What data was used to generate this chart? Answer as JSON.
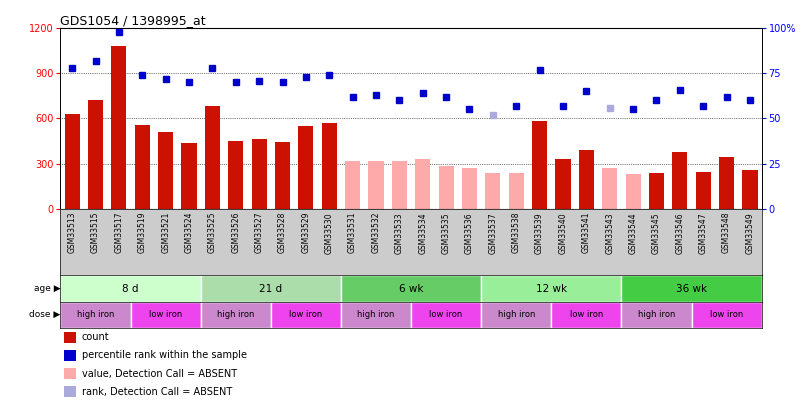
{
  "title": "GDS1054 / 1398995_at",
  "samples": [
    "GSM33513",
    "GSM33515",
    "GSM33517",
    "GSM33519",
    "GSM33521",
    "GSM33524",
    "GSM33525",
    "GSM33526",
    "GSM33527",
    "GSM33528",
    "GSM33529",
    "GSM33530",
    "GSM33531",
    "GSM33532",
    "GSM33533",
    "GSM33534",
    "GSM33535",
    "GSM33536",
    "GSM33537",
    "GSM33538",
    "GSM33539",
    "GSM33540",
    "GSM33541",
    "GSM33543",
    "GSM33544",
    "GSM33545",
    "GSM33546",
    "GSM33547",
    "GSM33548",
    "GSM33549"
  ],
  "bar_values": [
    630,
    720,
    1080,
    555,
    510,
    435,
    680,
    450,
    460,
    445,
    550,
    570,
    320,
    320,
    320,
    330,
    285,
    270,
    240,
    240,
    580,
    330,
    390,
    270,
    230,
    235,
    380,
    245,
    345,
    255
  ],
  "bar_absent": [
    false,
    false,
    false,
    false,
    false,
    false,
    false,
    false,
    false,
    false,
    false,
    false,
    true,
    true,
    true,
    true,
    true,
    true,
    true,
    true,
    false,
    false,
    false,
    true,
    true,
    false,
    false,
    false,
    false,
    false
  ],
  "percentile_values": [
    78,
    82,
    98,
    74,
    72,
    70,
    78,
    70,
    71,
    70,
    73,
    74,
    62,
    63,
    60,
    64,
    62,
    55,
    52,
    57,
    77,
    57,
    65,
    56,
    55,
    60,
    66,
    57,
    62,
    60
  ],
  "percentile_absent": [
    false,
    false,
    false,
    false,
    false,
    false,
    false,
    false,
    false,
    false,
    false,
    false,
    false,
    false,
    false,
    false,
    false,
    false,
    true,
    false,
    false,
    false,
    false,
    true,
    false,
    false,
    false,
    false,
    false,
    false
  ],
  "ylim_left": [
    0,
    1200
  ],
  "ylim_right": [
    0,
    100
  ],
  "yticks_left": [
    0,
    300,
    600,
    900,
    1200
  ],
  "yticks_right": [
    0,
    25,
    50,
    75,
    100
  ],
  "bar_color_present": "#cc1100",
  "bar_color_absent": "#ffaaaa",
  "dot_color_present": "#0000cc",
  "dot_color_absent": "#aaaadd",
  "age_groups": [
    {
      "label": "8 d",
      "start": 0,
      "end": 6,
      "color": "#ccffcc"
    },
    {
      "label": "21 d",
      "start": 6,
      "end": 12,
      "color": "#aaddaa"
    },
    {
      "label": "6 wk",
      "start": 12,
      "end": 18,
      "color": "#66cc66"
    },
    {
      "label": "12 wk",
      "start": 18,
      "end": 24,
      "color": "#99ee99"
    },
    {
      "label": "36 wk",
      "start": 24,
      "end": 30,
      "color": "#44cc44"
    }
  ],
  "dose_groups": [
    {
      "label": "high iron",
      "start": 0,
      "end": 3,
      "color": "#cc88cc"
    },
    {
      "label": "low iron",
      "start": 3,
      "end": 6,
      "color": "#ee44ee"
    },
    {
      "label": "high iron",
      "start": 6,
      "end": 9,
      "color": "#cc88cc"
    },
    {
      "label": "low iron",
      "start": 9,
      "end": 12,
      "color": "#ee44ee"
    },
    {
      "label": "high iron",
      "start": 12,
      "end": 15,
      "color": "#cc88cc"
    },
    {
      "label": "low iron",
      "start": 15,
      "end": 18,
      "color": "#ee44ee"
    },
    {
      "label": "high iron",
      "start": 18,
      "end": 21,
      "color": "#cc88cc"
    },
    {
      "label": "low iron",
      "start": 21,
      "end": 24,
      "color": "#ee44ee"
    },
    {
      "label": "high iron",
      "start": 24,
      "end": 27,
      "color": "#cc88cc"
    },
    {
      "label": "low iron",
      "start": 27,
      "end": 30,
      "color": "#ee44ee"
    }
  ],
  "legend_items": [
    {
      "label": "count",
      "color": "#cc1100"
    },
    {
      "label": "percentile rank within the sample",
      "color": "#0000cc"
    },
    {
      "label": "value, Detection Call = ABSENT",
      "color": "#ffaaaa"
    },
    {
      "label": "rank, Detection Call = ABSENT",
      "color": "#aaaadd"
    }
  ],
  "xtick_bg": "#cccccc",
  "grid_dotted_color": "black",
  "grid_dotted_lw": 0.5
}
